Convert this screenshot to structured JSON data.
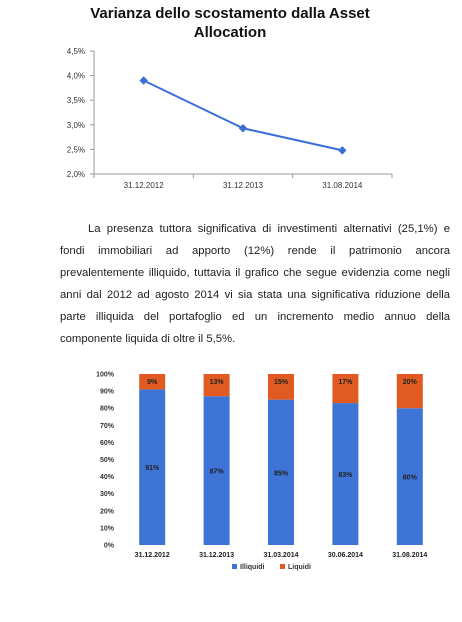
{
  "line_chart_title": {
    "line1": "Varianza dello scostamento dalla Asset",
    "line2": "Allocation"
  },
  "paragraph": {
    "text": "La presenza tuttora significativa di investimenti alternativi (25,1%) e fondi immobiliari ad apporto (12%) rende il patrimonio ancora prevalentemente illiquido, tuttavia il grafico che segue evidenzia come negli anni dal 2012 ad agosto 2014 vi sia stata una significativa riduzione della parte illiquida del portafoglio ed un incremento medio annuo della componente liquida di oltre il 5,5%."
  },
  "chart_data": [
    {
      "type": "line",
      "title": "Varianza dello scostamento dalla Asset Allocation",
      "categories": [
        "31.12.2012",
        "31.12.2013",
        "31.08.2014"
      ],
      "series": [
        {
          "values": [
            3.9,
            2.93,
            2.48
          ]
        }
      ],
      "yticks": [
        "2,0%",
        "2,5%",
        "3,0%",
        "3,5%",
        "4,0%",
        "4,5%"
      ],
      "ylim": [
        2.0,
        4.5
      ],
      "grid": false,
      "colors": {
        "line": "#3a6fd8"
      }
    },
    {
      "type": "bar",
      "stacked": true,
      "categories": [
        "31.12.2012",
        "31.12.2013",
        "31.03.2014",
        "30.06.2014",
        "31.08.2014"
      ],
      "series": [
        {
          "name": "Illiquidi",
          "values": [
            91,
            87,
            85,
            83,
            80
          ],
          "labels": [
            "91%",
            "87%",
            "85%",
            "83%",
            "80%"
          ],
          "color": "#3e74d6"
        },
        {
          "name": "Liquidi",
          "values": [
            9,
            13,
            15,
            17,
            20
          ],
          "labels": [
            "9%",
            "13%",
            "15%",
            "17%",
            "20%"
          ],
          "color": "#e05a22"
        }
      ],
      "yticks": [
        "0%",
        "10%",
        "20%",
        "30%",
        "40%",
        "50%",
        "60%",
        "70%",
        "80%",
        "90%",
        "100%"
      ],
      "ylim": [
        0,
        100
      ],
      "legend": "bottom",
      "grid": false
    }
  ]
}
